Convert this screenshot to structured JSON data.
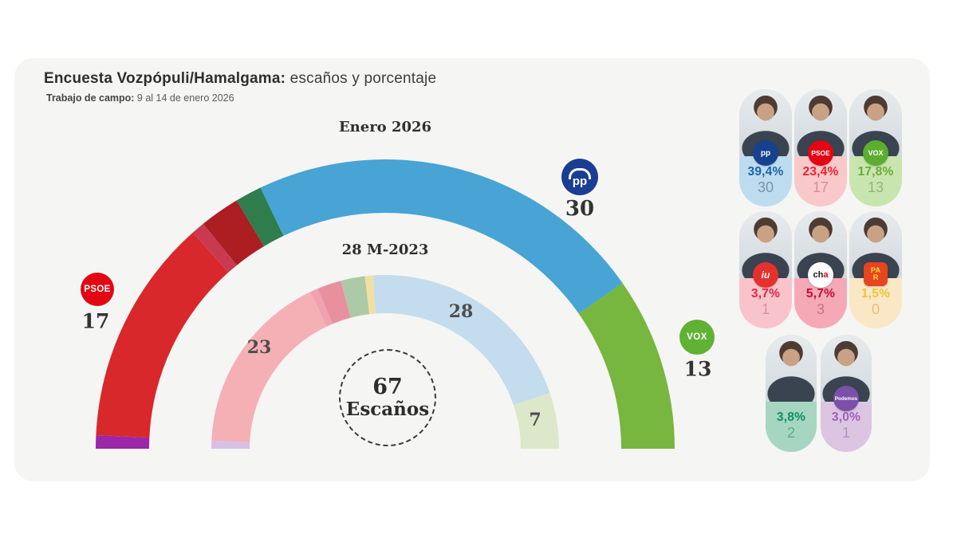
{
  "page": {
    "bg": "#FFFFFF",
    "card_bg": "#F5F5F3"
  },
  "header": {
    "title_bold": "Encuesta Vozpópuli/Hamalgama:",
    "title_rest": " escaños y porcentaje",
    "fieldwork_bold": "Trabajo de campo:",
    "fieldwork_rest": " 9 al 14 de enero 2026"
  },
  "chart_data": {
    "type": "hemicycle-donut",
    "total_seats": 67,
    "center": {
      "number": "67",
      "label": "Escaños"
    },
    "outer": {
      "label": "Enero 2026",
      "segments": [
        {
          "id": "podemos",
          "seats": 1,
          "color": "#9C27A8"
        },
        {
          "id": "psoe",
          "seats": 17,
          "color": "#D8282B"
        },
        {
          "id": "iu",
          "seats": 1,
          "color": "#C93A50"
        },
        {
          "id": "cha",
          "seats": 3,
          "color": "#AC1E22"
        },
        {
          "id": "existe",
          "seats": 2,
          "color": "#2F7D4C"
        },
        {
          "id": "pp",
          "seats": 30,
          "color": "#47A4D4"
        },
        {
          "id": "vox",
          "seats": 13,
          "color": "#77B63F"
        }
      ]
    },
    "inner": {
      "label": "28 M-2023",
      "segments": [
        {
          "id": "podemos",
          "seats": 1,
          "color": "#D8C0E4"
        },
        {
          "id": "psoe",
          "seats": 23,
          "color": "#F5B0B6"
        },
        {
          "id": "iu",
          "seats": 1,
          "color": "#EFA2B0"
        },
        {
          "id": "cha",
          "seats": 3,
          "color": "#E9909F"
        },
        {
          "id": "existe",
          "seats": 3,
          "color": "#ACCAA6"
        },
        {
          "id": "par",
          "seats": 1,
          "color": "#F3DFA0"
        },
        {
          "id": "pp",
          "seats": 28,
          "color": "#C3DCEE"
        },
        {
          "id": "vox",
          "seats": 7,
          "color": "#DCE8C9"
        }
      ]
    },
    "callouts": {
      "psoe": {
        "seats": "17",
        "badge_text": "PSOE",
        "badge_bg": "#E30613"
      },
      "pp": {
        "seats": "30",
        "badge_text": "pp",
        "badge_bg": "#1A3E94"
      },
      "vox": {
        "seats": "13",
        "badge_text": "VOX",
        "badge_bg": "#5FB233"
      },
      "inner_psoe": "23",
      "inner_pp": "28",
      "inner_vox": "7"
    }
  },
  "panel": {
    "cards": [
      {
        "party": "PP",
        "pct": "39,4%",
        "seats": "30",
        "bg": "#BEDCEF",
        "pct_color": "#1E63A9",
        "seats_color": "#7C93A3",
        "badge_text": "pp",
        "badge_bg": "#16418F",
        "badge_color": "#FFFFFF"
      },
      {
        "party": "PSOE",
        "pct": "23,4%",
        "seats": "17",
        "bg": "#F9C8CA",
        "pct_color": "#E8232E",
        "seats_color": "#D68F93",
        "badge_text": "PSOE",
        "badge_bg": "#E30613",
        "badge_color": "#FFFFFF"
      },
      {
        "party": "VOX",
        "pct": "17,8%",
        "seats": "13",
        "bg": "#C9E5AF",
        "pct_color": "#68AC34",
        "seats_color": "#97B279",
        "badge_text": "VOX",
        "badge_bg": "#5BAE2F",
        "badge_color": "#FFFFFF"
      },
      {
        "party": "IU",
        "pct": "3,7%",
        "seats": "1",
        "bg": "#F9C3CB",
        "pct_color": "#E42449",
        "seats_color": "#D6939D",
        "badge_text": "iu",
        "badge_bg": "#E5312E",
        "badge_color": "#FFFFFF"
      },
      {
        "party": "CHA",
        "pct": "5,7%",
        "seats": "3",
        "bg": "#F5A9B7",
        "pct_color": "#C20F30",
        "seats_color": "#C77585",
        "badge_text": "ch",
        "badge_accent": "a",
        "badge_bg": "#FFFFFF",
        "badge_color": "#1A1A1A",
        "badge_accent_color": "#E30613"
      },
      {
        "party": "PAR",
        "pct": "1,5%",
        "seats": "0",
        "bg": "#FAE7C6",
        "pct_color": "#EDC434",
        "seats_color": "#E3C275",
        "badge_text": "PA\nR",
        "badge_bg": "#E8441F",
        "badge_color": "#FFD93B"
      },
      {
        "party": "",
        "pct": "3,8%",
        "seats": "2",
        "bg": "#A6D6C2",
        "pct_color": "#0E8E67",
        "seats_color": "#5FA98E"
      },
      {
        "party": "Podemos",
        "pct": "3,0%",
        "seats": "1",
        "bg": "#DCC5E3",
        "pct_color": "#9C5FBE",
        "seats_color": "#B492C4",
        "badge_text": "Podemos",
        "badge_bg": "#7C4FA8",
        "badge_color": "#FFFFFF"
      }
    ]
  }
}
